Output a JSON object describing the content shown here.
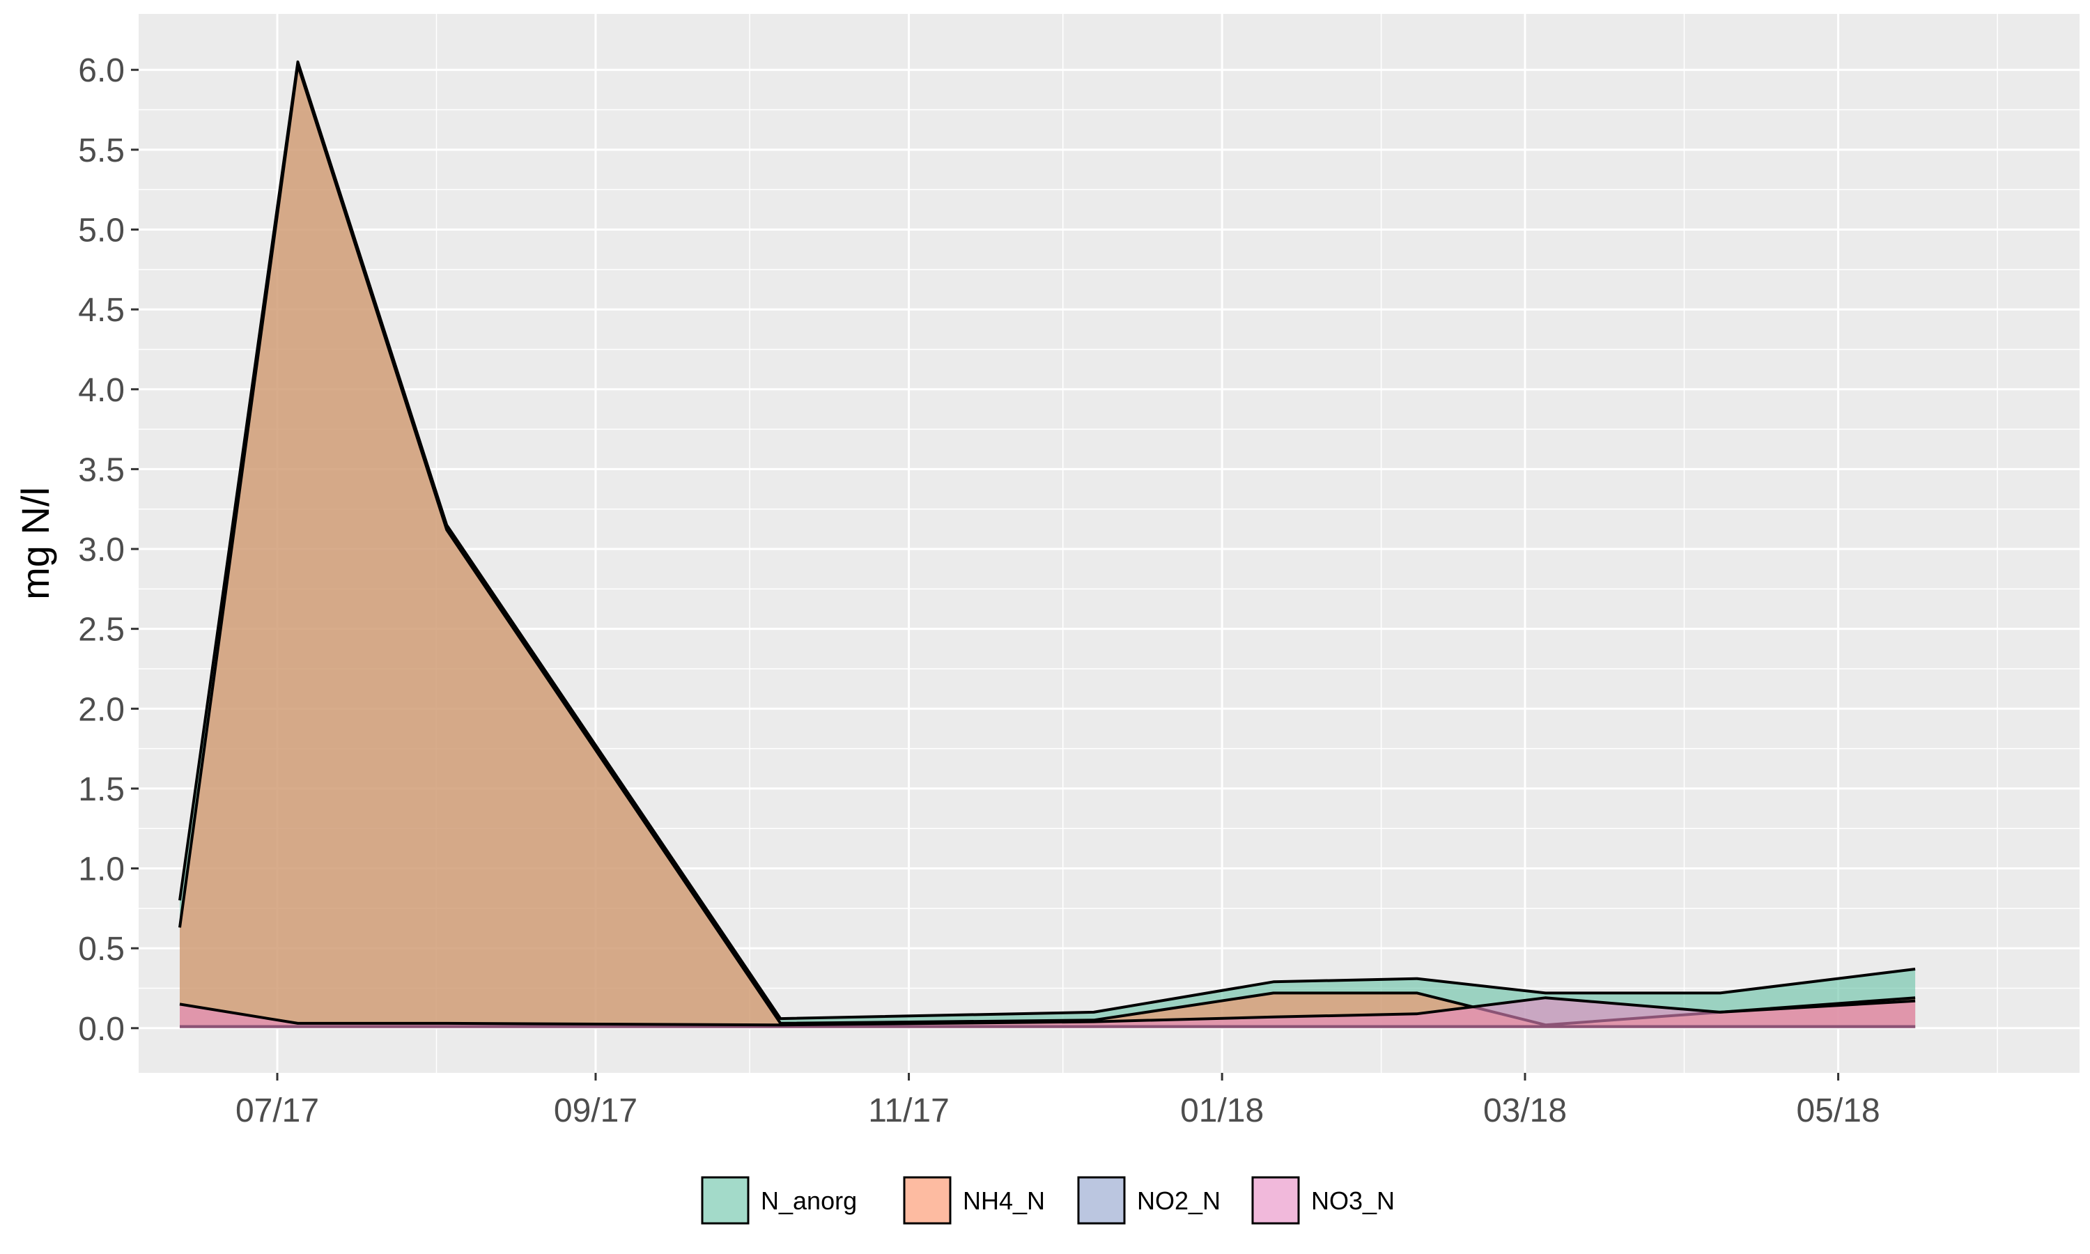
{
  "chart_data": {
    "type": "area",
    "xlabel": "",
    "ylabel": "mg N/l",
    "ylim": [
      -0.28,
      6.35
    ],
    "yticks": [
      0.0,
      0.5,
      1.0,
      1.5,
      2.0,
      2.5,
      3.0,
      3.5,
      4.0,
      4.5,
      5.0,
      5.5,
      6.0
    ],
    "ytick_labels": [
      "0.0",
      "0.5",
      "1.0",
      "1.5",
      "2.0",
      "2.5",
      "3.0",
      "3.5",
      "4.0",
      "4.5",
      "5.0",
      "5.5",
      "6.0"
    ],
    "xlim": [
      "2017-06-04",
      "2018-06-17"
    ],
    "xticks": [
      "2017-07-01",
      "2017-09-01",
      "2017-11-01",
      "2018-01-01",
      "2018-03-01",
      "2018-05-01"
    ],
    "xtick_labels": [
      "07/17",
      "09/17",
      "11/17",
      "01/18",
      "03/18",
      "05/18"
    ],
    "x_minor_ticks": [
      "2017-08-01",
      "2017-10-01",
      "2017-12-01",
      "2018-02-01",
      "2018-04-01",
      "2018-06-01"
    ],
    "grid": true,
    "legend_position": "bottom",
    "x": [
      "2017-06-12",
      "2017-07-05",
      "2017-08-03",
      "2017-10-07",
      "2017-12-07",
      "2018-01-11",
      "2018-02-08",
      "2018-03-05",
      "2018-04-08",
      "2018-05-16"
    ],
    "series": [
      {
        "name": "N_anorg",
        "color": "#66c2a5",
        "values": [
          0.8,
          6.05,
          3.15,
          0.06,
          0.1,
          0.29,
          0.31,
          0.22,
          0.22,
          0.37
        ]
      },
      {
        "name": "NH4_N",
        "color": "#fc8d62",
        "values": [
          0.63,
          6.03,
          3.12,
          0.03,
          0.05,
          0.22,
          0.22,
          0.02,
          0.1,
          0.19
        ]
      },
      {
        "name": "NO2_N",
        "color": "#8da0cb",
        "values": [
          0.01,
          0.01,
          0.01,
          0.01,
          0.01,
          0.01,
          0.01,
          0.01,
          0.01,
          0.01
        ]
      },
      {
        "name": "NO3_N",
        "color": "#e78ac3",
        "values": [
          0.15,
          0.03,
          0.03,
          0.02,
          0.04,
          0.07,
          0.09,
          0.19,
          0.1,
          0.17
        ]
      }
    ]
  }
}
